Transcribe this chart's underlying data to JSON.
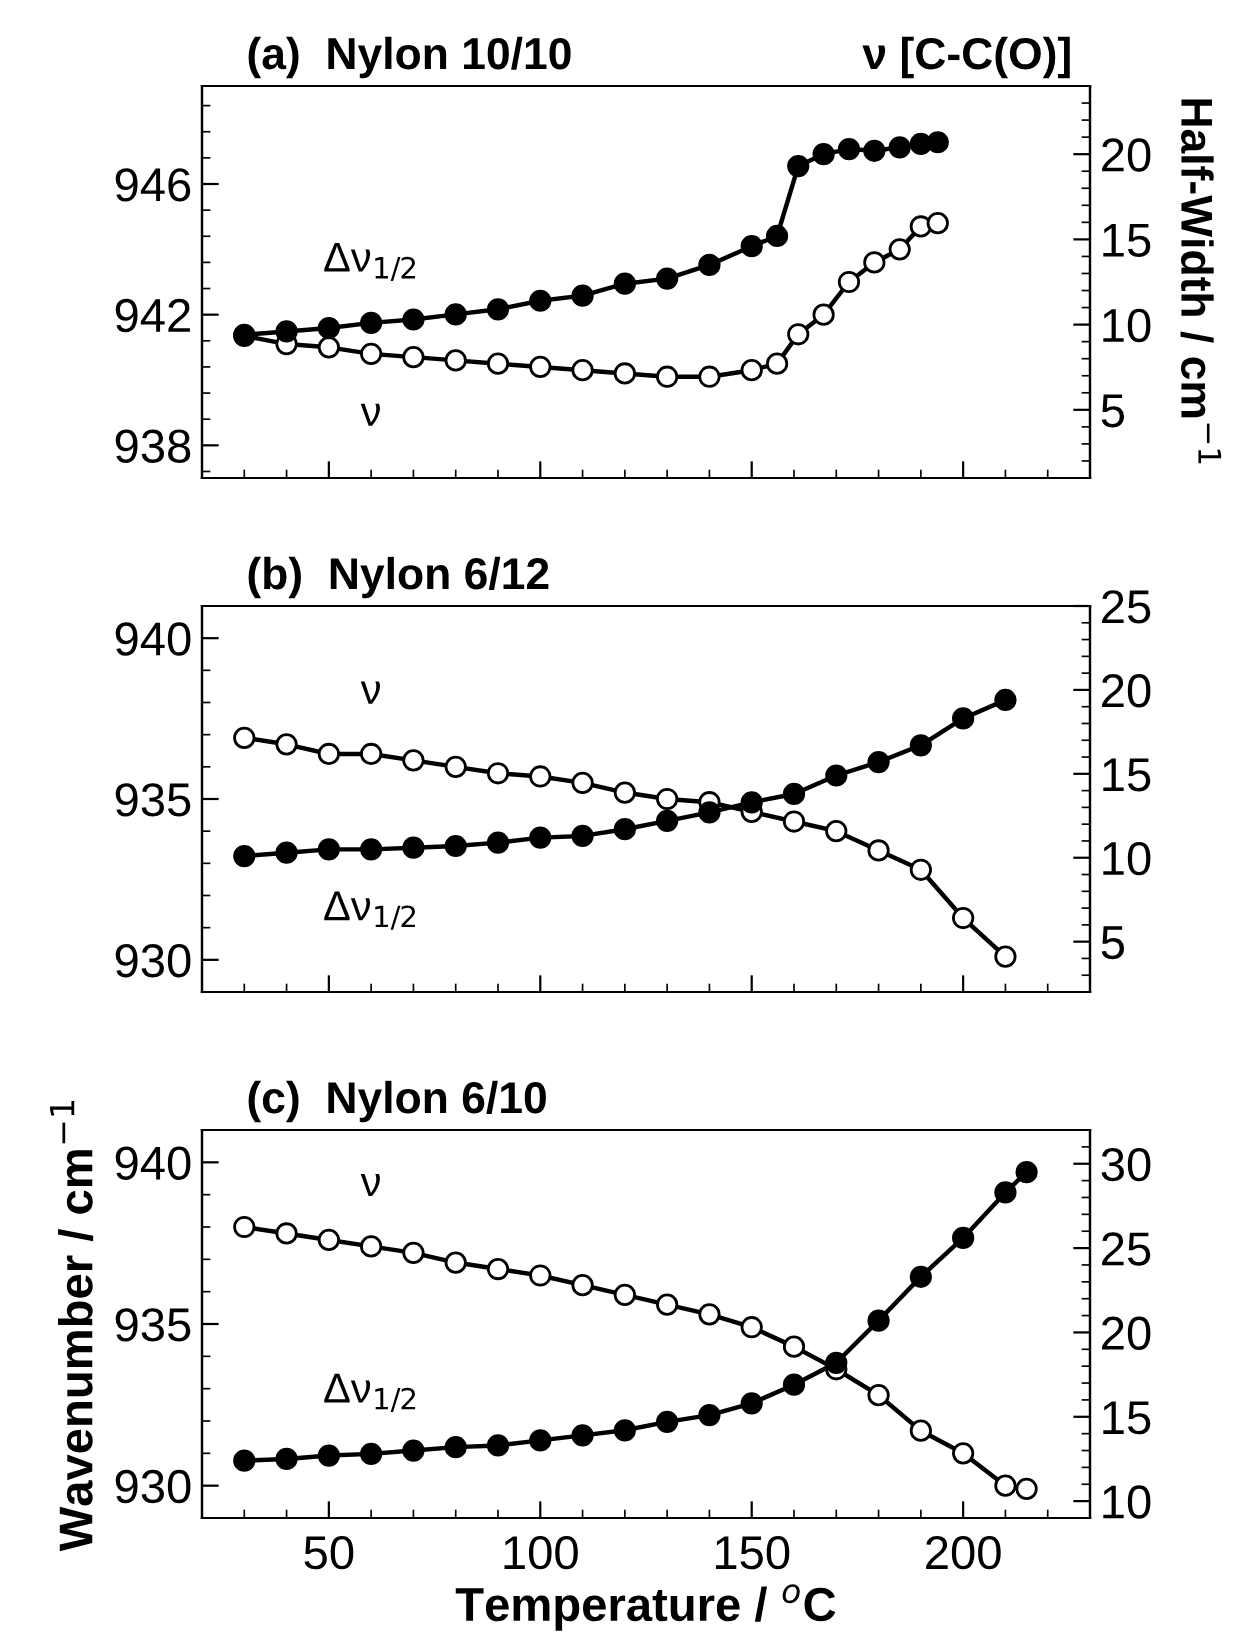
{
  "chart_data": [
    {
      "type": "line",
      "title": "(a)  Nylon 10/10",
      "y2label": "Half-Width / cm$^{−1}$",
      "marker": "circle",
      "line_style": "solid",
      "grid": false,
      "legend": false,
      "tick_labels": "y",
      "xlim": [
        20,
        230
      ],
      "xticks": [
        50,
        100,
        150,
        200
      ],
      "ylim": [
        937,
        949
      ],
      "yticks": [
        938,
        942,
        946
      ],
      "y2lim": [
        1,
        24
      ],
      "y2ticks": [
        5,
        10,
        15,
        20
      ],
      "annotations": [
        "ν [C-C(O)]"
      ],
      "series": [
        {
          "name": "Δν$_{1/2}$",
          "color": "#000000",
          "axis": "y2",
          "x": [
            30,
            40,
            50,
            60,
            70,
            80,
            90,
            100,
            110,
            120,
            130,
            140,
            150,
            156,
            161,
            167,
            173,
            179,
            185,
            190,
            194
          ],
          "values": [
            9.4,
            9.6,
            9.8,
            10.1,
            10.3,
            10.6,
            10.9,
            11.4,
            11.7,
            12.4,
            12.7,
            13.5,
            14.6,
            15.2,
            19.3,
            20.0,
            20.3,
            20.2,
            20.4,
            20.6,
            20.7
          ]
        },
        {
          "name": "ν",
          "color": "#ffffff",
          "x": [
            30,
            40,
            50,
            60,
            70,
            80,
            90,
            100,
            110,
            120,
            130,
            140,
            150,
            156,
            161,
            167,
            173,
            179,
            185,
            190,
            194
          ],
          "values": [
            941.35,
            941.1,
            941.0,
            940.8,
            940.7,
            940.6,
            940.5,
            940.4,
            940.3,
            940.2,
            940.1,
            940.1,
            940.3,
            940.5,
            941.4,
            942.0,
            943.0,
            943.6,
            944.0,
            944.7,
            944.8
          ]
        }
      ]
    },
    {
      "type": "line",
      "title": "(b)  Nylon 6/12",
      "marker": "circle",
      "line_style": "solid",
      "grid": false,
      "legend": false,
      "tick_labels": "y",
      "xlim": [
        20,
        230
      ],
      "xticks": [
        50,
        100,
        150,
        200
      ],
      "ylim": [
        929,
        941
      ],
      "yticks": [
        930,
        935,
        940
      ],
      "y2lim": [
        2,
        25
      ],
      "y2ticks": [
        5,
        10,
        15,
        20,
        25
      ],
      "series": [
        {
          "name": "ν",
          "color": "#ffffff",
          "x": [
            30,
            40,
            50,
            60,
            70,
            80,
            90,
            100,
            110,
            120,
            130,
            140,
            150,
            160,
            170,
            180,
            190,
            200,
            210
          ],
          "values": [
            936.9,
            936.7,
            936.4,
            936.4,
            936.2,
            936.0,
            935.8,
            935.7,
            935.5,
            935.2,
            935.0,
            934.9,
            934.6,
            934.3,
            934.0,
            933.4,
            932.8,
            931.3,
            930.1
          ]
        },
        {
          "name": "Δν$_{1/2}$",
          "color": "#000000",
          "axis": "y2",
          "x": [
            30,
            40,
            50,
            60,
            70,
            80,
            90,
            100,
            110,
            120,
            130,
            140,
            150,
            160,
            170,
            180,
            190,
            200,
            210
          ],
          "values": [
            10.1,
            10.3,
            10.5,
            10.5,
            10.6,
            10.7,
            10.9,
            11.2,
            11.3,
            11.7,
            12.2,
            12.7,
            13.3,
            13.8,
            14.9,
            15.7,
            16.7,
            18.3,
            19.4
          ]
        }
      ]
    },
    {
      "type": "line",
      "title": "(c)  Nylon 6/10",
      "xlabel": "Temperature / $^{o}$C",
      "ylabel": "Wavenumber / cm$^{−1}$",
      "marker": "circle",
      "line_style": "solid",
      "grid": false,
      "legend": false,
      "xlim": [
        20,
        230
      ],
      "xticks": [
        50,
        100,
        150,
        200
      ],
      "ylim": [
        929,
        941
      ],
      "yticks": [
        930,
        935,
        940
      ],
      "y2lim": [
        9,
        32
      ],
      "y2ticks": [
        10,
        15,
        20,
        25,
        30
      ],
      "series": [
        {
          "name": "ν",
          "color": "#ffffff",
          "x": [
            30,
            40,
            50,
            60,
            70,
            80,
            90,
            100,
            110,
            120,
            130,
            140,
            150,
            160,
            170,
            180,
            190,
            200,
            210,
            215
          ],
          "values": [
            938.0,
            937.8,
            937.6,
            937.4,
            937.2,
            936.9,
            936.7,
            936.5,
            936.2,
            935.9,
            935.6,
            935.3,
            934.9,
            934.3,
            933.6,
            932.8,
            931.7,
            931.0,
            930.0,
            929.9
          ]
        },
        {
          "name": "Δν$_{1/2}$",
          "color": "#000000",
          "axis": "y2",
          "x": [
            30,
            40,
            50,
            60,
            70,
            80,
            90,
            100,
            110,
            120,
            130,
            140,
            150,
            160,
            170,
            180,
            190,
            200,
            210,
            215
          ],
          "values": [
            12.4,
            12.5,
            12.7,
            12.8,
            13.0,
            13.2,
            13.3,
            13.6,
            13.9,
            14.2,
            14.7,
            15.1,
            15.8,
            16.9,
            18.2,
            20.7,
            23.3,
            25.6,
            28.3,
            29.5
          ]
        }
      ]
    }
  ]
}
